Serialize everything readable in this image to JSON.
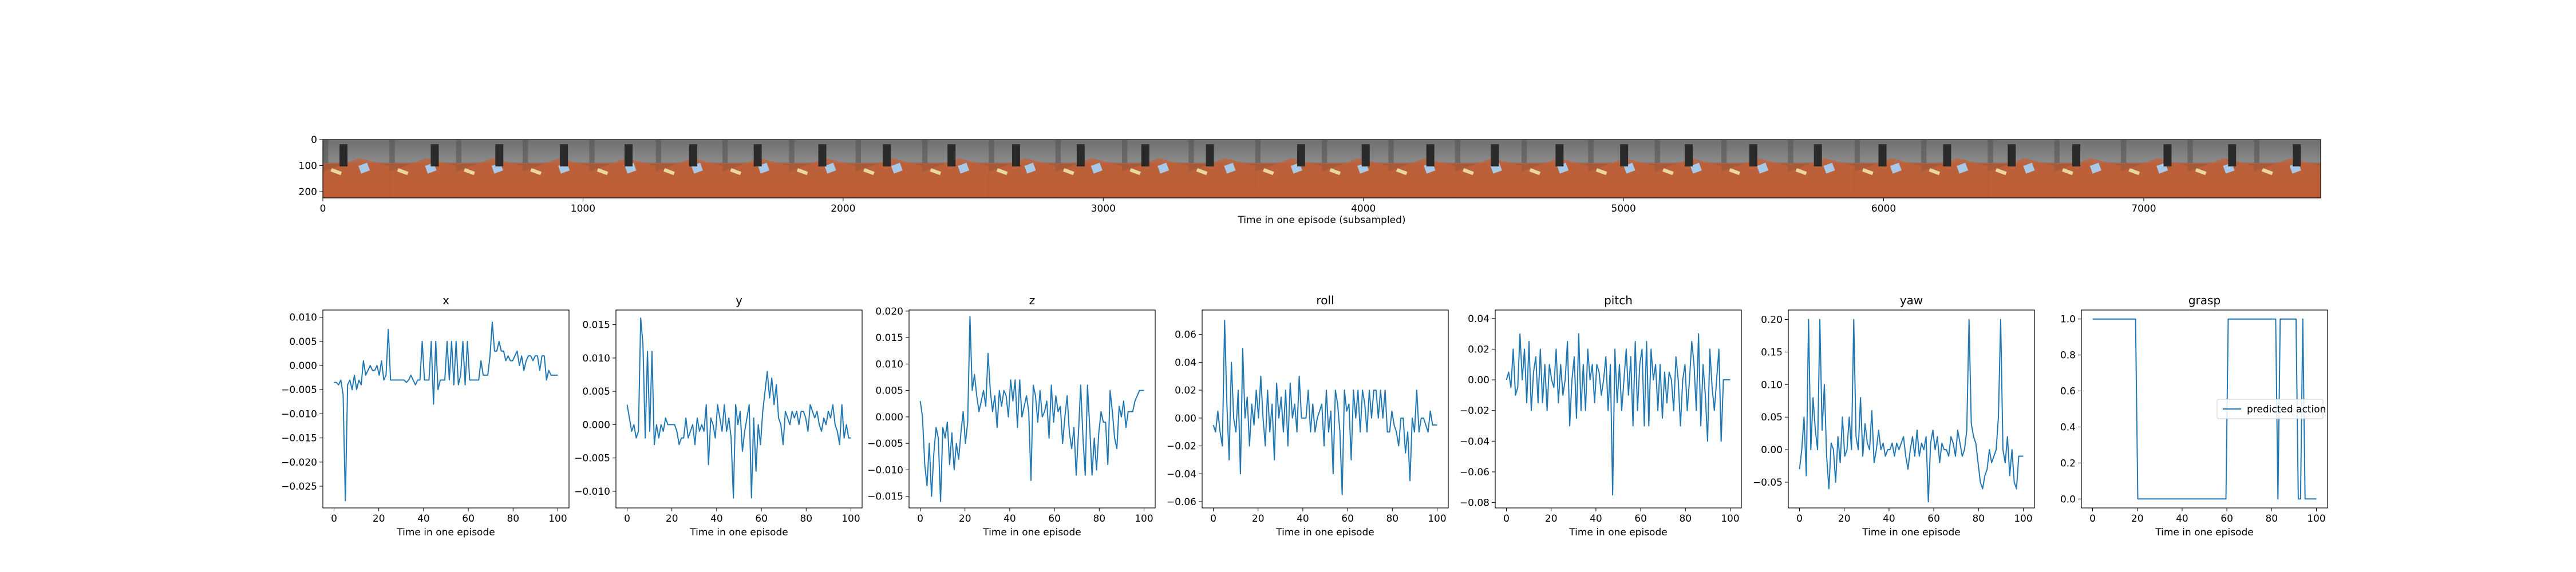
{
  "colors": {
    "line": "#1f77b4",
    "axis": "#000000",
    "legend_border": "#cccccc"
  },
  "chart_data": [
    {
      "type": "image",
      "xlabel": "Time in one episode (subsampled)",
      "xticks": [
        0,
        1000,
        2000,
        3000,
        4000,
        5000,
        6000,
        7000
      ],
      "yticks": [
        0,
        100,
        200
      ],
      "xlim": [
        0,
        7680
      ],
      "ylim": [
        224,
        0
      ],
      "frames": 30
    },
    {
      "type": "line",
      "title": "x",
      "xlabel": "Time in one episode",
      "xlim": [
        -5,
        105
      ],
      "ylim": [
        -0.0295,
        0.0115
      ],
      "xticks": [
        0,
        20,
        40,
        60,
        80,
        100
      ],
      "yticks": [
        0.01,
        0.005,
        0.0,
        -0.005,
        -0.01,
        -0.015,
        -0.02,
        -0.025
      ],
      "yticklabels": [
        "0.010",
        "0.005",
        "0.000",
        "−0.005",
        "−0.010",
        "−0.015",
        "−0.020",
        "−0.025"
      ],
      "values": [
        -0.0035,
        -0.0035,
        -0.004,
        -0.003,
        -0.006,
        -0.028,
        -0.004,
        -0.003,
        -0.005,
        -0.002,
        -0.005,
        -0.003,
        -0.004,
        0.001,
        -0.002,
        -0.001,
        0.0,
        -0.001,
        -0.001,
        0.0,
        -0.002,
        0.001,
        -0.003,
        -0.002,
        0.0075,
        -0.003,
        -0.003,
        -0.003,
        -0.003,
        -0.003,
        -0.003,
        -0.003,
        -0.0035,
        -0.003,
        -0.002,
        -0.003,
        -0.004,
        -0.003,
        -0.003,
        0.005,
        -0.003,
        -0.003,
        -0.003,
        0.005,
        -0.008,
        0.005,
        -0.005,
        -0.003,
        -0.003,
        -0.003,
        0.005,
        -0.003,
        0.005,
        -0.004,
        0.005,
        -0.004,
        -0.002,
        0.005,
        -0.004,
        0.005,
        -0.003,
        -0.003,
        -0.003,
        -0.003,
        -0.003,
        0.001,
        -0.002,
        -0.002,
        -0.002,
        0.002,
        0.009,
        0.003,
        0.003,
        0.005,
        0.003,
        0.003,
        0.001,
        0.002,
        0.001,
        0.001,
        0.002,
        0.003,
        0.0,
        0.002,
        -0.001,
        0.001,
        0.002,
        0.002,
        0.001,
        0.002,
        0.002,
        -0.001,
        0.002,
        0.002,
        -0.003,
        -0.001,
        -0.002,
        -0.002,
        -0.002,
        -0.002
      ]
    },
    {
      "type": "line",
      "title": "y",
      "xlabel": "Time in one episode",
      "xlim": [
        -5,
        105
      ],
      "ylim": [
        -0.0125,
        0.0172
      ],
      "xticks": [
        0,
        20,
        40,
        60,
        80,
        100
      ],
      "yticks": [
        0.015,
        0.01,
        0.005,
        0.0,
        -0.005,
        -0.01
      ],
      "yticklabels": [
        "0.015",
        "0.010",
        "0.005",
        "0.000",
        "−0.005",
        "−0.010"
      ],
      "values": [
        0.003,
        0.001,
        -0.001,
        0.0,
        -0.002,
        -0.001,
        0.016,
        0.012,
        -0.002,
        0.011,
        -0.001,
        0.011,
        -0.003,
        0.0,
        -0.002,
        0.0,
        -0.001,
        0.001,
        0.0,
        0.0,
        0.0,
        0.0,
        -0.001,
        -0.003,
        -0.002,
        -0.002,
        0.001,
        -0.002,
        -0.001,
        0.0,
        -0.003,
        0.001,
        -0.001,
        0.0,
        -0.001,
        0.003,
        -0.006,
        0.001,
        0.0,
        -0.002,
        0.003,
        0.001,
        -0.001,
        0.003,
        -0.001,
        0.001,
        -0.002,
        -0.011,
        0.003,
        0.0,
        0.002,
        -0.004,
        -0.001,
        0.001,
        0.003,
        -0.011,
        0.001,
        -0.007,
        0.0,
        -0.003,
        0.002,
        0.005,
        0.008,
        0.004,
        0.007,
        0.003,
        0.006,
        0.001,
        0.0,
        -0.003,
        0.002,
        0.001,
        0.0,
        0.002,
        0.001,
        0.002,
        0.0,
        0.002,
        0.002,
        0.001,
        -0.001,
        0.003,
        0.002,
        0.001,
        0.002,
        0.0,
        -0.001,
        0.001,
        0.0,
        0.002,
        0.001,
        0.003,
        0.0,
        -0.001,
        -0.003,
        0.003,
        -0.002,
        0.0,
        -0.002,
        -0.002
      ]
    },
    {
      "type": "line",
      "title": "z",
      "xlabel": "Time in one episode",
      "xlim": [
        -5,
        105
      ],
      "ylim": [
        -0.0172,
        0.0202
      ],
      "xticks": [
        0,
        20,
        40,
        60,
        80,
        100
      ],
      "yticks": [
        0.02,
        0.015,
        0.01,
        0.005,
        0.0,
        -0.005,
        -0.01,
        -0.015
      ],
      "yticklabels": [
        "0.020",
        "0.015",
        "0.010",
        "0.005",
        "0.000",
        "−0.005",
        "−0.010",
        "−0.015"
      ],
      "values": [
        0.003,
        0.0,
        -0.009,
        -0.013,
        -0.005,
        -0.015,
        -0.007,
        -0.002,
        -0.004,
        -0.016,
        -0.002,
        -0.004,
        -0.001,
        -0.009,
        -0.003,
        -0.01,
        -0.005,
        -0.008,
        -0.003,
        0.001,
        -0.005,
        -0.001,
        0.019,
        0.005,
        0.008,
        0.004,
        0.001,
        0.003,
        0.005,
        0.002,
        0.012,
        0.005,
        0.001,
        0.004,
        -0.002,
        0.005,
        0.002,
        0.005,
        0.004,
        0.0,
        0.007,
        0.003,
        0.007,
        -0.002,
        0.007,
        0.0,
        0.002,
        0.004,
        0.001,
        -0.012,
        0.006,
        0.004,
        -0.001,
        0.005,
        0.0,
        0.001,
        0.003,
        -0.004,
        0.006,
        -0.001,
        0.004,
        0.001,
        0.002,
        -0.005,
        0.0,
        0.004,
        -0.003,
        -0.006,
        -0.002,
        -0.011,
        -0.003,
        0.006,
        -0.004,
        -0.011,
        0.006,
        -0.002,
        -0.011,
        -0.004,
        -0.01,
        -0.003,
        0.001,
        -0.001,
        -0.001,
        -0.009,
        0.005,
        0.001,
        -0.004,
        -0.006,
        0.002,
        0.0,
        0.003,
        -0.002,
        0.001,
        0.001,
        0.001,
        0.003,
        0.004,
        0.005,
        0.005,
        0.005
      ]
    },
    {
      "type": "line",
      "title": "roll",
      "xlabel": "Time in one episode",
      "xlim": [
        -5,
        105
      ],
      "ylim": [
        -0.0645,
        0.0775
      ],
      "xticks": [
        0,
        20,
        40,
        60,
        80,
        100
      ],
      "yticks": [
        0.06,
        0.04,
        0.02,
        0.0,
        -0.02,
        -0.04,
        -0.06
      ],
      "yticklabels": [
        "0.06",
        "0.04",
        "0.02",
        "0.00",
        "−0.02",
        "−0.04",
        "−0.06"
      ],
      "values": [
        -0.005,
        -0.01,
        0.005,
        -0.01,
        -0.02,
        0.07,
        0.01,
        -0.03,
        0.04,
        0.0,
        -0.01,
        0.02,
        -0.04,
        0.05,
        0.0,
        0.015,
        -0.02,
        0.01,
        -0.005,
        0.02,
        0.0,
        0.03,
        0.0,
        -0.02,
        0.02,
        -0.01,
        0.01,
        -0.03,
        0.025,
        0.0,
        0.015,
        -0.01,
        0.02,
        -0.02,
        0.025,
        0.0,
        0.01,
        -0.01,
        0.03,
        0.0,
        0.0,
        0.0,
        0.02,
        -0.01,
        0.01,
        -0.01,
        0.0,
        0.005,
        0.01,
        -0.02,
        0.02,
        -0.01,
        0.005,
        -0.04,
        0.02,
        0.01,
        -0.01,
        -0.055,
        0.02,
        0.005,
        0.01,
        -0.03,
        0.02,
        0.0,
        0.02,
        -0.01,
        0.02,
        0.01,
        -0.01,
        0.02,
        0.0,
        0.02,
        0.02,
        0.0,
        0.02,
        0.0,
        0.02,
        -0.01,
        -0.01,
        0.005,
        -0.005,
        -0.01,
        -0.02,
        0.0,
        0.0,
        -0.025,
        -0.01,
        -0.045,
        0.0,
        -0.01,
        0.02,
        -0.01,
        0.0,
        0.0,
        -0.005,
        -0.01,
        0.005,
        -0.005,
        -0.005,
        -0.005
      ]
    },
    {
      "type": "line",
      "title": "pitch",
      "xlabel": "Time in one episode",
      "xlim": [
        -5,
        105
      ],
      "ylim": [
        -0.0835,
        0.0455
      ],
      "xticks": [
        0,
        20,
        40,
        60,
        80,
        100
      ],
      "yticks": [
        0.04,
        0.02,
        0.0,
        -0.02,
        -0.04,
        -0.06,
        -0.08
      ],
      "yticklabels": [
        "0.04",
        "0.02",
        "0.00",
        "−0.02",
        "−0.04",
        "−0.06",
        "−0.08"
      ],
      "values": [
        0.0,
        0.005,
        -0.005,
        0.02,
        -0.01,
        -0.005,
        0.03,
        0.0,
        0.02,
        -0.015,
        0.025,
        -0.02,
        0.005,
        0.015,
        -0.015,
        0.02,
        -0.015,
        0.01,
        -0.02,
        0.01,
        0.0,
        -0.005,
        0.02,
        -0.015,
        0.01,
        -0.01,
        0.0,
        0.025,
        -0.03,
        0.0,
        0.015,
        -0.025,
        0.03,
        -0.02,
        0.01,
        -0.02,
        0.02,
        0.0,
        0.01,
        -0.015,
        0.01,
        0.005,
        -0.01,
        0.0,
        0.015,
        -0.02,
        0.01,
        -0.075,
        0.02,
        -0.015,
        0.01,
        -0.02,
        0.0,
        0.02,
        -0.01,
        0.015,
        -0.03,
        0.025,
        -0.02,
        0.01,
        0.02,
        -0.03,
        0.025,
        -0.03,
        0.02,
        0.0,
        0.01,
        -0.02,
        0.01,
        -0.025,
        0.005,
        -0.015,
        0.005,
        0.0,
        -0.02,
        0.015,
        0.0,
        -0.03,
        0.0,
        0.01,
        -0.02,
        0.0,
        0.025,
        0.01,
        -0.02,
        0.03,
        -0.03,
        0.01,
        -0.01,
        -0.04,
        0.02,
        -0.005,
        -0.02,
        0.0,
        0.02,
        -0.04,
        0.0,
        0.0,
        0.0,
        0.0
      ]
    },
    {
      "type": "line",
      "title": "yaw",
      "xlabel": "Time in one episode",
      "xlim": [
        -5,
        105
      ],
      "ylim": [
        -0.0895,
        0.2145
      ],
      "xticks": [
        0,
        20,
        40,
        60,
        80,
        100
      ],
      "yticks": [
        0.2,
        0.15,
        0.1,
        0.05,
        0.0,
        -0.05
      ],
      "yticklabels": [
        "0.20",
        "0.15",
        "0.10",
        "0.05",
        "0.00",
        "−0.05"
      ],
      "values": [
        -0.03,
        0.0,
        0.05,
        -0.04,
        0.2,
        0.0,
        0.08,
        0.03,
        0.0,
        0.2,
        0.03,
        0.1,
        -0.01,
        -0.06,
        0.01,
        0.0,
        -0.05,
        0.02,
        -0.02,
        0.05,
        -0.01,
        0.0,
        0.05,
        0.0,
        0.2,
        0.02,
        0.0,
        0.08,
        -0.01,
        0.04,
        0.01,
        0.0,
        0.06,
        -0.02,
        0.0,
        0.03,
        0.0,
        0.01,
        -0.01,
        0.0,
        0.0,
        0.01,
        -0.01,
        0.01,
        0.0,
        0.01,
        0.02,
        -0.01,
        -0.03,
        0.0,
        0.02,
        -0.01,
        0.03,
        -0.01,
        0.01,
        0.0,
        0.02,
        -0.08,
        0.01,
        0.03,
        0.0,
        0.02,
        -0.02,
        0.01,
        0.0,
        0.0,
        -0.01,
        0.02,
        0.01,
        -0.01,
        0.03,
        0.01,
        -0.01,
        0.0,
        0.03,
        0.2,
        0.04,
        0.02,
        0.01,
        -0.02,
        -0.05,
        -0.06,
        -0.04,
        -0.03,
        0.0,
        -0.02,
        -0.01,
        0.0,
        0.05,
        0.2,
        0.0,
        -0.02,
        0.02,
        -0.04,
        0.0,
        -0.05,
        -0.06,
        -0.01,
        -0.01,
        -0.01
      ]
    },
    {
      "type": "line",
      "title": "grasp",
      "xlabel": "Time in one episode",
      "xlim": [
        -5,
        105
      ],
      "ylim": [
        -0.05,
        1.05
      ],
      "xticks": [
        0,
        20,
        40,
        60,
        80,
        100
      ],
      "yticks": [
        1.0,
        0.8,
        0.6,
        0.4,
        0.2,
        0.0
      ],
      "yticklabels": [
        "1.0",
        "0.8",
        "0.6",
        "0.4",
        "0.2",
        "0.0"
      ],
      "values": [
        1,
        1,
        1,
        1,
        1,
        1,
        1,
        1,
        1,
        1,
        1,
        1,
        1,
        1,
        1,
        1,
        1,
        1,
        1,
        1,
        0,
        0,
        0,
        0,
        0,
        0,
        0,
        0,
        0,
        0,
        0,
        0,
        0,
        0,
        0,
        0,
        0,
        0,
        0,
        0,
        0,
        0,
        0,
        0,
        0,
        0,
        0,
        0,
        0,
        0,
        0,
        0,
        0,
        0,
        0,
        0,
        0,
        0,
        0,
        0,
        1,
        1,
        1,
        1,
        1,
        1,
        1,
        1,
        1,
        1,
        1,
        1,
        1,
        1,
        1,
        1,
        1,
        1,
        1,
        1,
        1,
        1,
        0,
        1,
        1,
        1,
        1,
        1,
        1,
        1,
        1,
        0,
        0,
        1,
        0,
        0,
        0,
        0,
        0,
        0
      ],
      "legend": [
        "predicted action"
      ],
      "legend_loc": "center-right"
    }
  ]
}
